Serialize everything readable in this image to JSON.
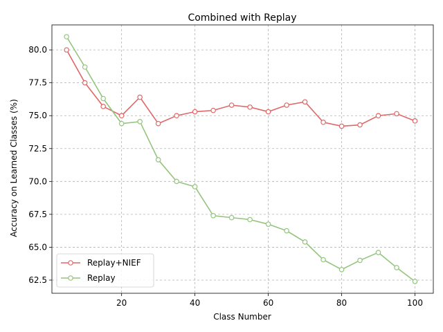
{
  "chart_data": {
    "type": "line",
    "title": "Combined with Replay",
    "xlabel": "Class Number",
    "ylabel": "Accuracy on Learned Classes (%)",
    "x": [
      5,
      10,
      15,
      20,
      25,
      30,
      35,
      40,
      45,
      50,
      55,
      60,
      65,
      70,
      75,
      80,
      85,
      90,
      95,
      100
    ],
    "xlim": [
      1,
      105
    ],
    "ylim": [
      61.5,
      81.9
    ],
    "xticks": [
      20,
      40,
      60,
      80,
      100
    ],
    "yticks": [
      62.5,
      65.0,
      67.5,
      70.0,
      72.5,
      75.0,
      77.5,
      80.0
    ],
    "grid": true,
    "legend_position": "lower-left",
    "series": [
      {
        "name": "Replay+NIEF",
        "color": "#e06666",
        "values": [
          80.0,
          77.5,
          75.7,
          75.0,
          76.4,
          74.4,
          75.0,
          75.3,
          75.4,
          75.8,
          75.65,
          75.3,
          75.8,
          76.05,
          74.5,
          74.2,
          74.3,
          75.0,
          75.15,
          74.6
        ]
      },
      {
        "name": "Replay",
        "color": "#93c47d",
        "values": [
          81.0,
          78.7,
          76.3,
          74.4,
          74.55,
          71.65,
          70.0,
          69.6,
          67.4,
          67.25,
          67.1,
          66.75,
          66.25,
          65.4,
          64.05,
          63.3,
          64.0,
          64.6,
          63.45,
          62.4
        ]
      }
    ]
  }
}
